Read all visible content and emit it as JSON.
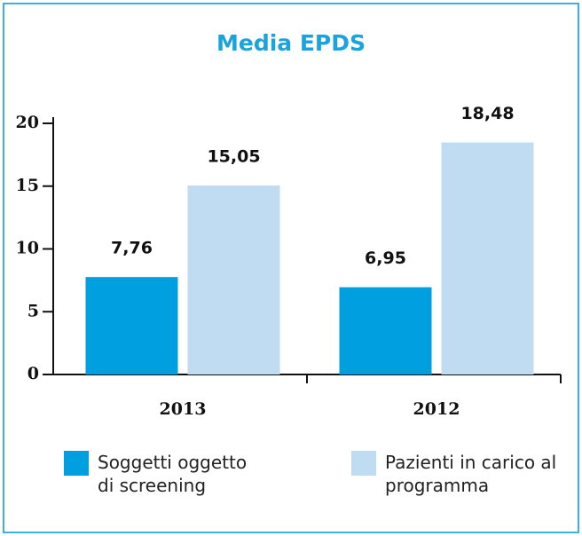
{
  "chart_data": {
    "type": "bar",
    "title": "Media EPDS",
    "categories": [
      "2013",
      "2012"
    ],
    "series": [
      {
        "name": "Soggetti oggetto di screening",
        "color": "#009fdf",
        "values": [
          7.76,
          6.95
        ],
        "value_labels": [
          "7,76",
          "6,95"
        ]
      },
      {
        "name": "Pazienti in carico al programma",
        "color": "#bfdcf3",
        "values": [
          15.05,
          18.48
        ],
        "value_labels": [
          "15,05",
          "18,48"
        ]
      }
    ],
    "ylim": [
      0,
      20
    ],
    "yticks": [
      0,
      5,
      10,
      15,
      20
    ],
    "grid": false
  }
}
